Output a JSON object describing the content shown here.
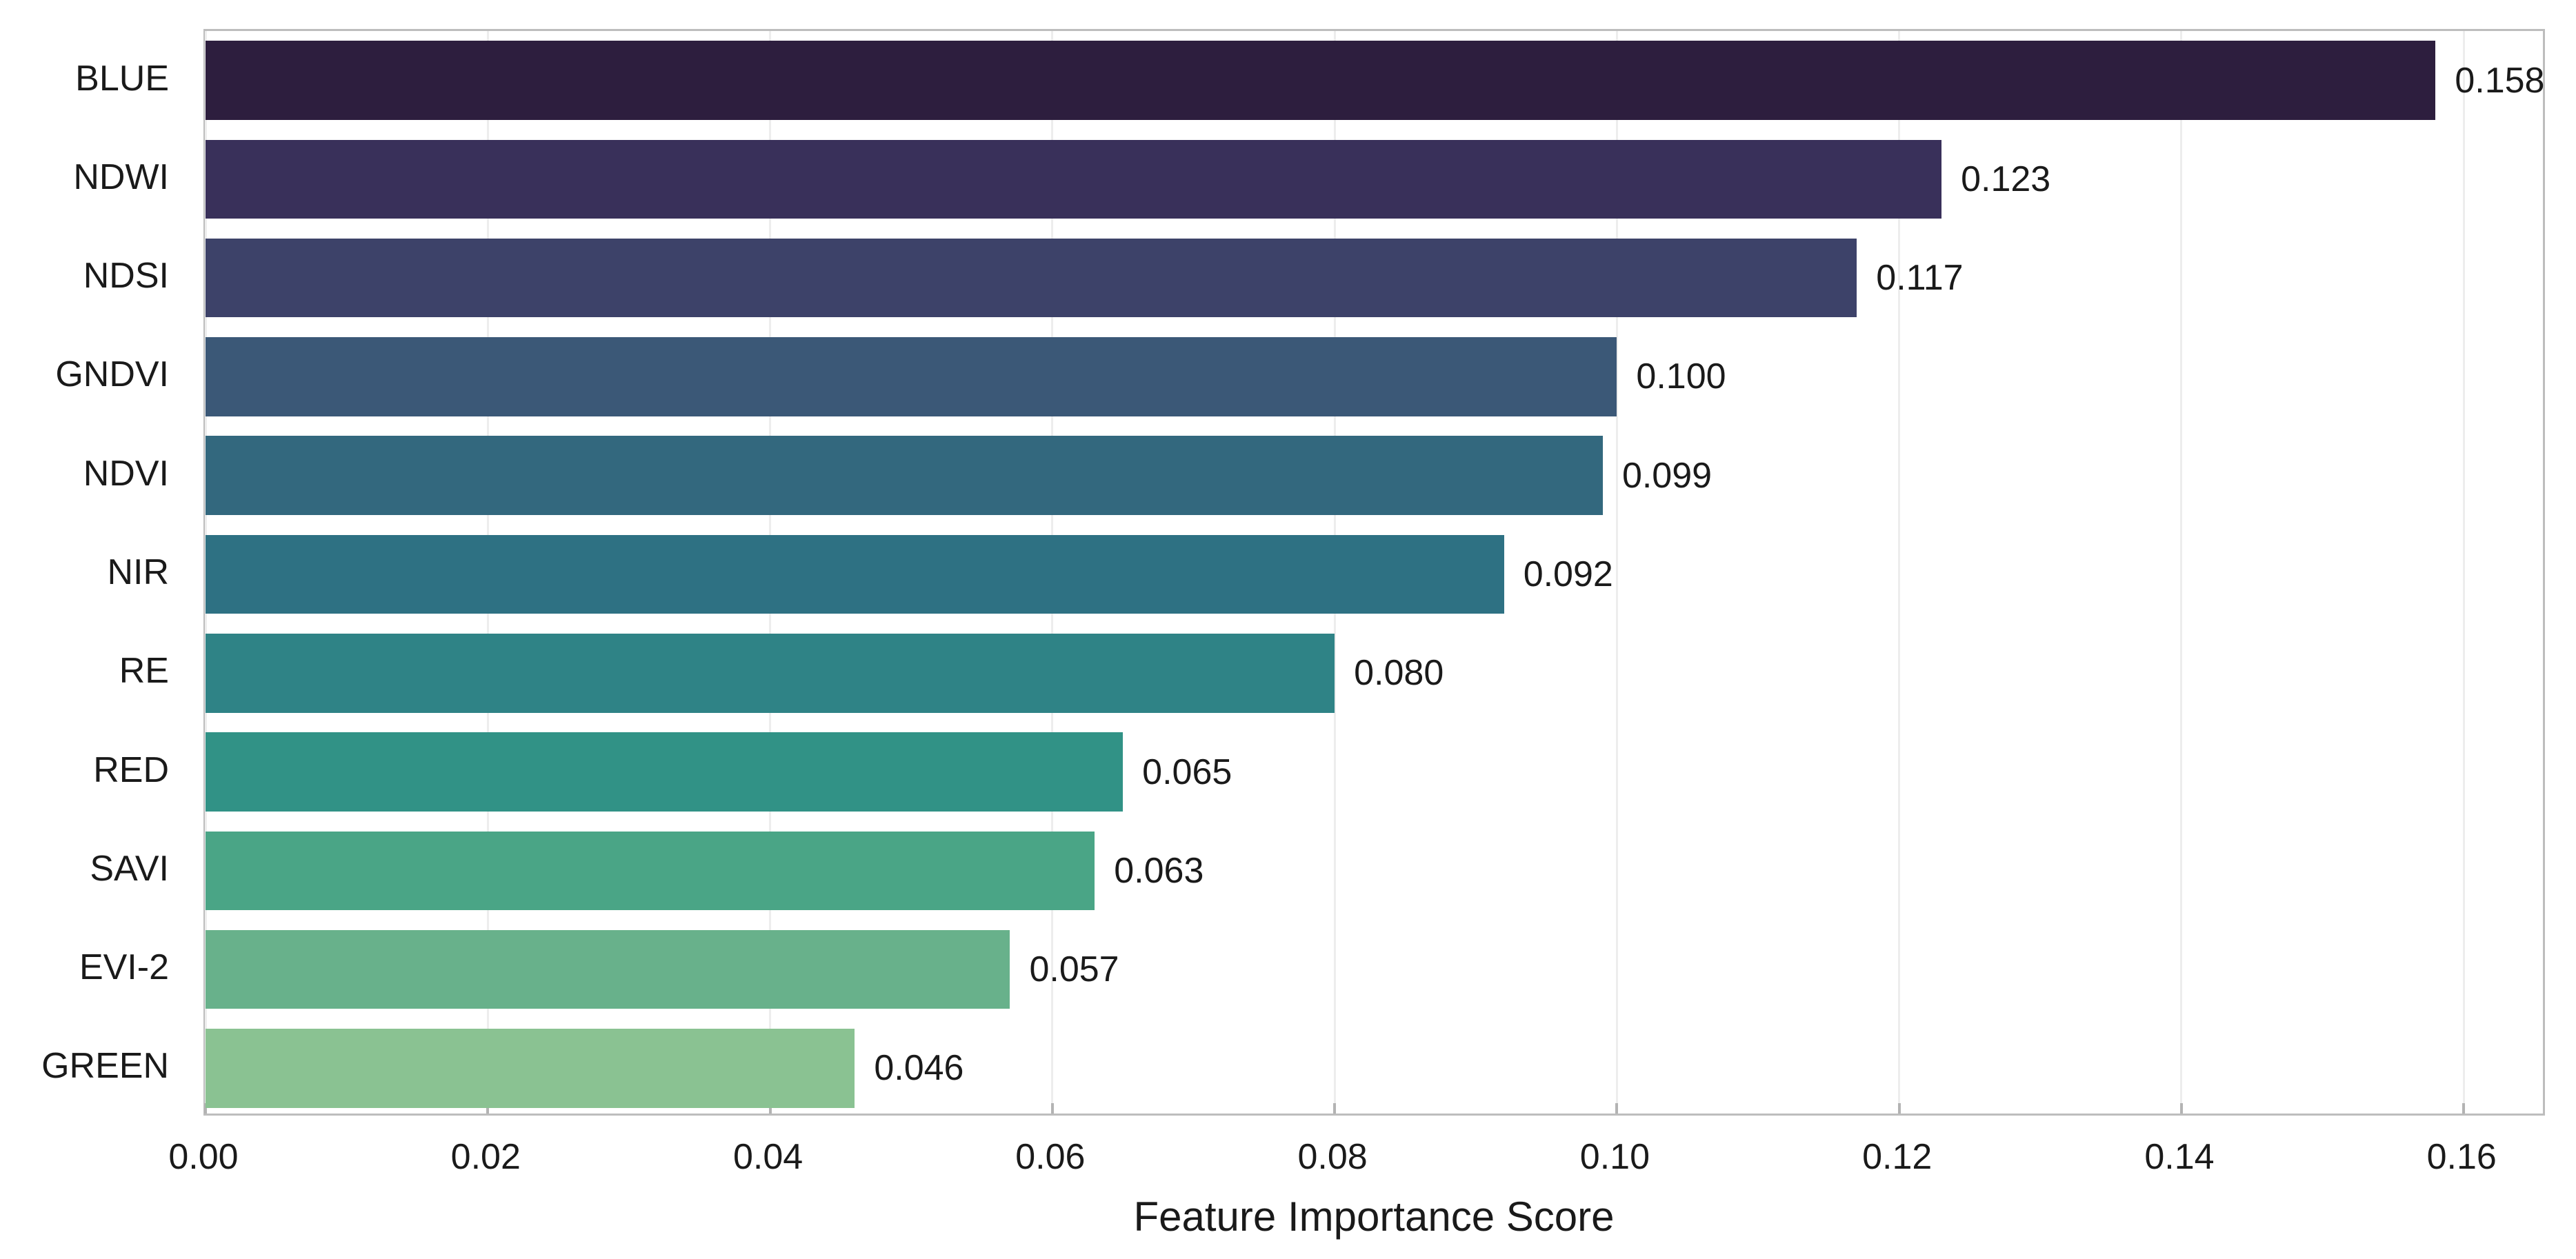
{
  "chart_data": {
    "type": "bar",
    "orientation": "horizontal",
    "title": "",
    "xlabel": "Feature Importance Score",
    "ylabel": "",
    "categories": [
      "BLUE",
      "NDWI",
      "NDSI",
      "GNDVI",
      "NDVI",
      "NIR",
      "RE",
      "RED",
      "SAVI",
      "EVI-2",
      "GREEN"
    ],
    "values": [
      0.158,
      0.123,
      0.117,
      0.1,
      0.099,
      0.092,
      0.08,
      0.065,
      0.063,
      0.057,
      0.046
    ],
    "value_labels": [
      "0.158",
      "0.123",
      "0.117",
      "0.100",
      "0.099",
      "0.092",
      "0.080",
      "0.065",
      "0.063",
      "0.057",
      "0.046"
    ],
    "bar_colors": [
      "#2d1e3e",
      "#39305a",
      "#3d4269",
      "#3b5877",
      "#33687e",
      "#2e7183",
      "#2f8386",
      "#319286",
      "#4aa586",
      "#68b18b",
      "#8ac292"
    ],
    "x_tick_labels": [
      "0.00",
      "0.02",
      "0.04",
      "0.06",
      "0.08",
      "0.10",
      "0.12",
      "0.14",
      "0.16"
    ],
    "x_tick_values": [
      0.0,
      0.02,
      0.04,
      0.06,
      0.08,
      0.1,
      0.12,
      0.14,
      0.16
    ],
    "xlim": [
      0,
      0.1659
    ],
    "grid": "vertical",
    "legend": "none",
    "bar_width_fraction": 0.8,
    "theme": {
      "background": "#ffffff",
      "grid_color": "#ededed",
      "spine_color": "#bdbdbd",
      "tick_mark_color": "#b3b3b3",
      "text_color": "#1a1a1a"
    }
  }
}
